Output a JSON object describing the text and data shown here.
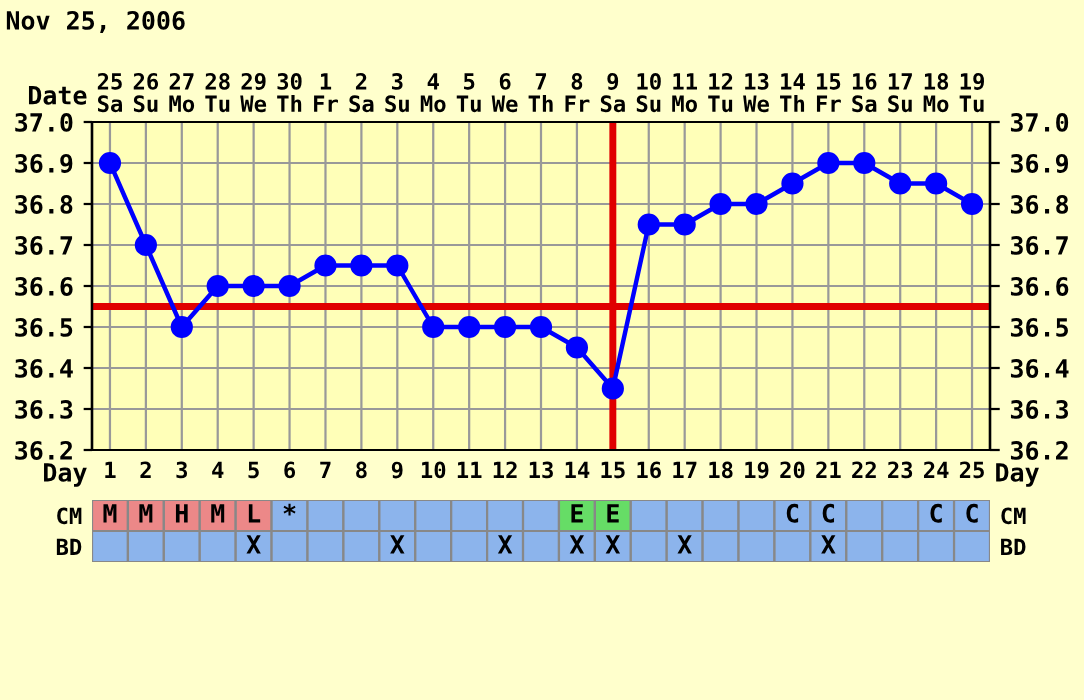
{
  "chart_data": [
    {
      "type": "line",
      "title": "Nov 25, 2006",
      "xlabel": "Day",
      "x": [
        1,
        2,
        3,
        4,
        5,
        6,
        7,
        8,
        9,
        10,
        11,
        12,
        13,
        14,
        15,
        16,
        17,
        18,
        19,
        20,
        21,
        22,
        23,
        24,
        25
      ],
      "xlim": [
        0.5,
        25.5
      ],
      "xticks": [
        1,
        2,
        3,
        4,
        5,
        6,
        7,
        8,
        9,
        10,
        11,
        12,
        13,
        14,
        15,
        16,
        17,
        18,
        19,
        20,
        21,
        22,
        23,
        24,
        25
      ],
      "x2label": "Date",
      "x2lim": [
        "2006-11-24T12:00",
        "2006-12-19T12:00"
      ],
      "x2ticks": [
        {
          "value": "2006-11-25",
          "label": "25\nSa"
        },
        {
          "value": "2006-11-26",
          "label": "26\nSu"
        },
        {
          "value": "2006-11-27",
          "label": "27\nMo"
        },
        {
          "value": "2006-11-28",
          "label": "28\nTu"
        },
        {
          "value": "2006-11-29",
          "label": "29\nWe"
        },
        {
          "value": "2006-11-30",
          "label": "30\nTh"
        },
        {
          "value": "2006-12-01",
          "label": "1\nFr"
        },
        {
          "value": "2006-12-02",
          "label": "2\nSa"
        },
        {
          "value": "2006-12-03",
          "label": "3\nSu"
        },
        {
          "value": "2006-12-04",
          "label": "4\nMo"
        },
        {
          "value": "2006-12-05",
          "label": "5\nTu"
        },
        {
          "value": "2006-12-06",
          "label": "6\nWe"
        },
        {
          "value": "2006-12-07",
          "label": "7\nTh"
        },
        {
          "value": "2006-12-08",
          "label": "8\nFr"
        },
        {
          "value": "2006-12-09",
          "label": "9\nSa"
        },
        {
          "value": "2006-12-10",
          "label": "10\nSu"
        },
        {
          "value": "2006-12-11",
          "label": "11\nMo"
        },
        {
          "value": "2006-12-12",
          "label": "12\nTu"
        },
        {
          "value": "2006-12-13",
          "label": "13\nWe"
        },
        {
          "value": "2006-12-14",
          "label": "14\nTh"
        },
        {
          "value": "2006-12-15",
          "label": "15\nFr"
        },
        {
          "value": "2006-12-16",
          "label": "16\nSa"
        },
        {
          "value": "2006-12-17",
          "label": "17\nSu"
        },
        {
          "value": "2006-12-18",
          "label": "18\nMo"
        },
        {
          "value": "2006-12-19",
          "label": "19\nTu"
        }
      ],
      "series": [
        {
          "color": "#0000ff",
          "values": [
            36.9,
            36.7,
            36.5,
            36.6,
            36.6,
            36.6,
            36.65,
            36.65,
            36.65,
            36.5,
            36.5,
            36.5,
            36.5,
            36.45,
            36.35,
            36.75,
            36.75,
            36.8,
            36.8,
            36.85,
            36.9,
            36.9,
            36.85,
            36.85,
            36.8
          ]
        }
      ],
      "ylim": [
        36.2,
        37.0
      ],
      "yticks": [
        {
          "value": 36.2,
          "label": "36.2"
        },
        {
          "value": 36.3,
          "label": "36.3"
        },
        {
          "value": 36.4,
          "label": "36.4"
        },
        {
          "value": 36.5,
          "label": "36.5"
        },
        {
          "value": 36.6,
          "label": "36.6"
        },
        {
          "value": 36.7,
          "label": "36.7"
        },
        {
          "value": 36.8,
          "label": "36.8"
        },
        {
          "value": 36.9,
          "label": "36.9"
        },
        {
          "value": 37.0,
          "label": "37.0"
        }
      ],
      "y2lim": [
        36.2,
        37.0
      ],
      "y2ticks": [
        {
          "value": 36.2,
          "label": "36.2"
        },
        {
          "value": 36.3,
          "label": "36.3"
        },
        {
          "value": 36.4,
          "label": "36.4"
        },
        {
          "value": 36.5,
          "label": "36.5"
        },
        {
          "value": 36.6,
          "label": "36.6"
        },
        {
          "value": 36.7,
          "label": "36.7"
        },
        {
          "value": 36.8,
          "label": "36.8"
        },
        {
          "value": 36.9,
          "label": "36.9"
        },
        {
          "value": 37.0,
          "label": "37.0"
        }
      ],
      "ref_lines": [
        {
          "axis": "y",
          "value": 36.55,
          "color": "#e00000"
        },
        {
          "axis": "x",
          "value": 15,
          "color": "#e00000"
        }
      ],
      "marker": "circle",
      "grid": true
    },
    {
      "type": "other",
      "categories": [
        null,
        null,
        null,
        null,
        null,
        null,
        null,
        null,
        null,
        null,
        null,
        null,
        null,
        null,
        null,
        null,
        null,
        null,
        null,
        null,
        null,
        null,
        null,
        null,
        null
      ],
      "y_categories": [
        "CM",
        "BD"
      ],
      "y2_categories": [
        "CM",
        "BD"
      ],
      "cell_labels": [
        [
          "M",
          "M",
          "H",
          "M",
          "L",
          "*",
          null,
          null,
          null,
          null,
          null,
          null,
          null,
          "E",
          "E",
          null,
          null,
          null,
          null,
          "C",
          "C",
          null,
          null,
          "C",
          "C"
        ],
        [
          null,
          null,
          null,
          null,
          "X",
          null,
          null,
          null,
          "X",
          null,
          null,
          "X",
          null,
          "X",
          "X",
          null,
          "X",
          null,
          null,
          null,
          "X",
          null,
          null,
          null,
          null
        ]
      ],
      "colors": [
        "#ec8888",
        "#ec8888",
        "#ec8888",
        "#ec8888",
        "#ec8888",
        "#8cb4ec",
        "#8cb4ec",
        "#8cb4ec",
        "#8cb4ec",
        "#8cb4ec",
        "#8cb4ec",
        "#8cb4ec",
        "#8cb4ec",
        "#66dd66",
        "#66dd66",
        "#8cb4ec",
        "#8cb4ec",
        "#8cb4ec",
        "#8cb4ec",
        "#8cb4ec",
        "#8cb4ec",
        "#8cb4ec",
        "#8cb4ec",
        "#8cb4ec",
        "#8cb4ec",
        "#8cb4ec",
        "#8cb4ec",
        "#8cb4ec",
        "#8cb4ec",
        "#8cb4ec",
        "#8cb4ec",
        "#8cb4ec",
        "#8cb4ec",
        "#8cb4ec",
        "#8cb4ec",
        "#8cb4ec",
        "#8cb4ec",
        "#8cb4ec",
        "#8cb4ec",
        "#8cb4ec",
        "#8cb4ec",
        "#8cb4ec",
        "#8cb4ec",
        "#8cb4ec",
        "#8cb4ec",
        "#8cb4ec",
        "#8cb4ec",
        "#8cb4ec",
        "#8cb4ec",
        "#8cb4ec"
      ]
    }
  ]
}
